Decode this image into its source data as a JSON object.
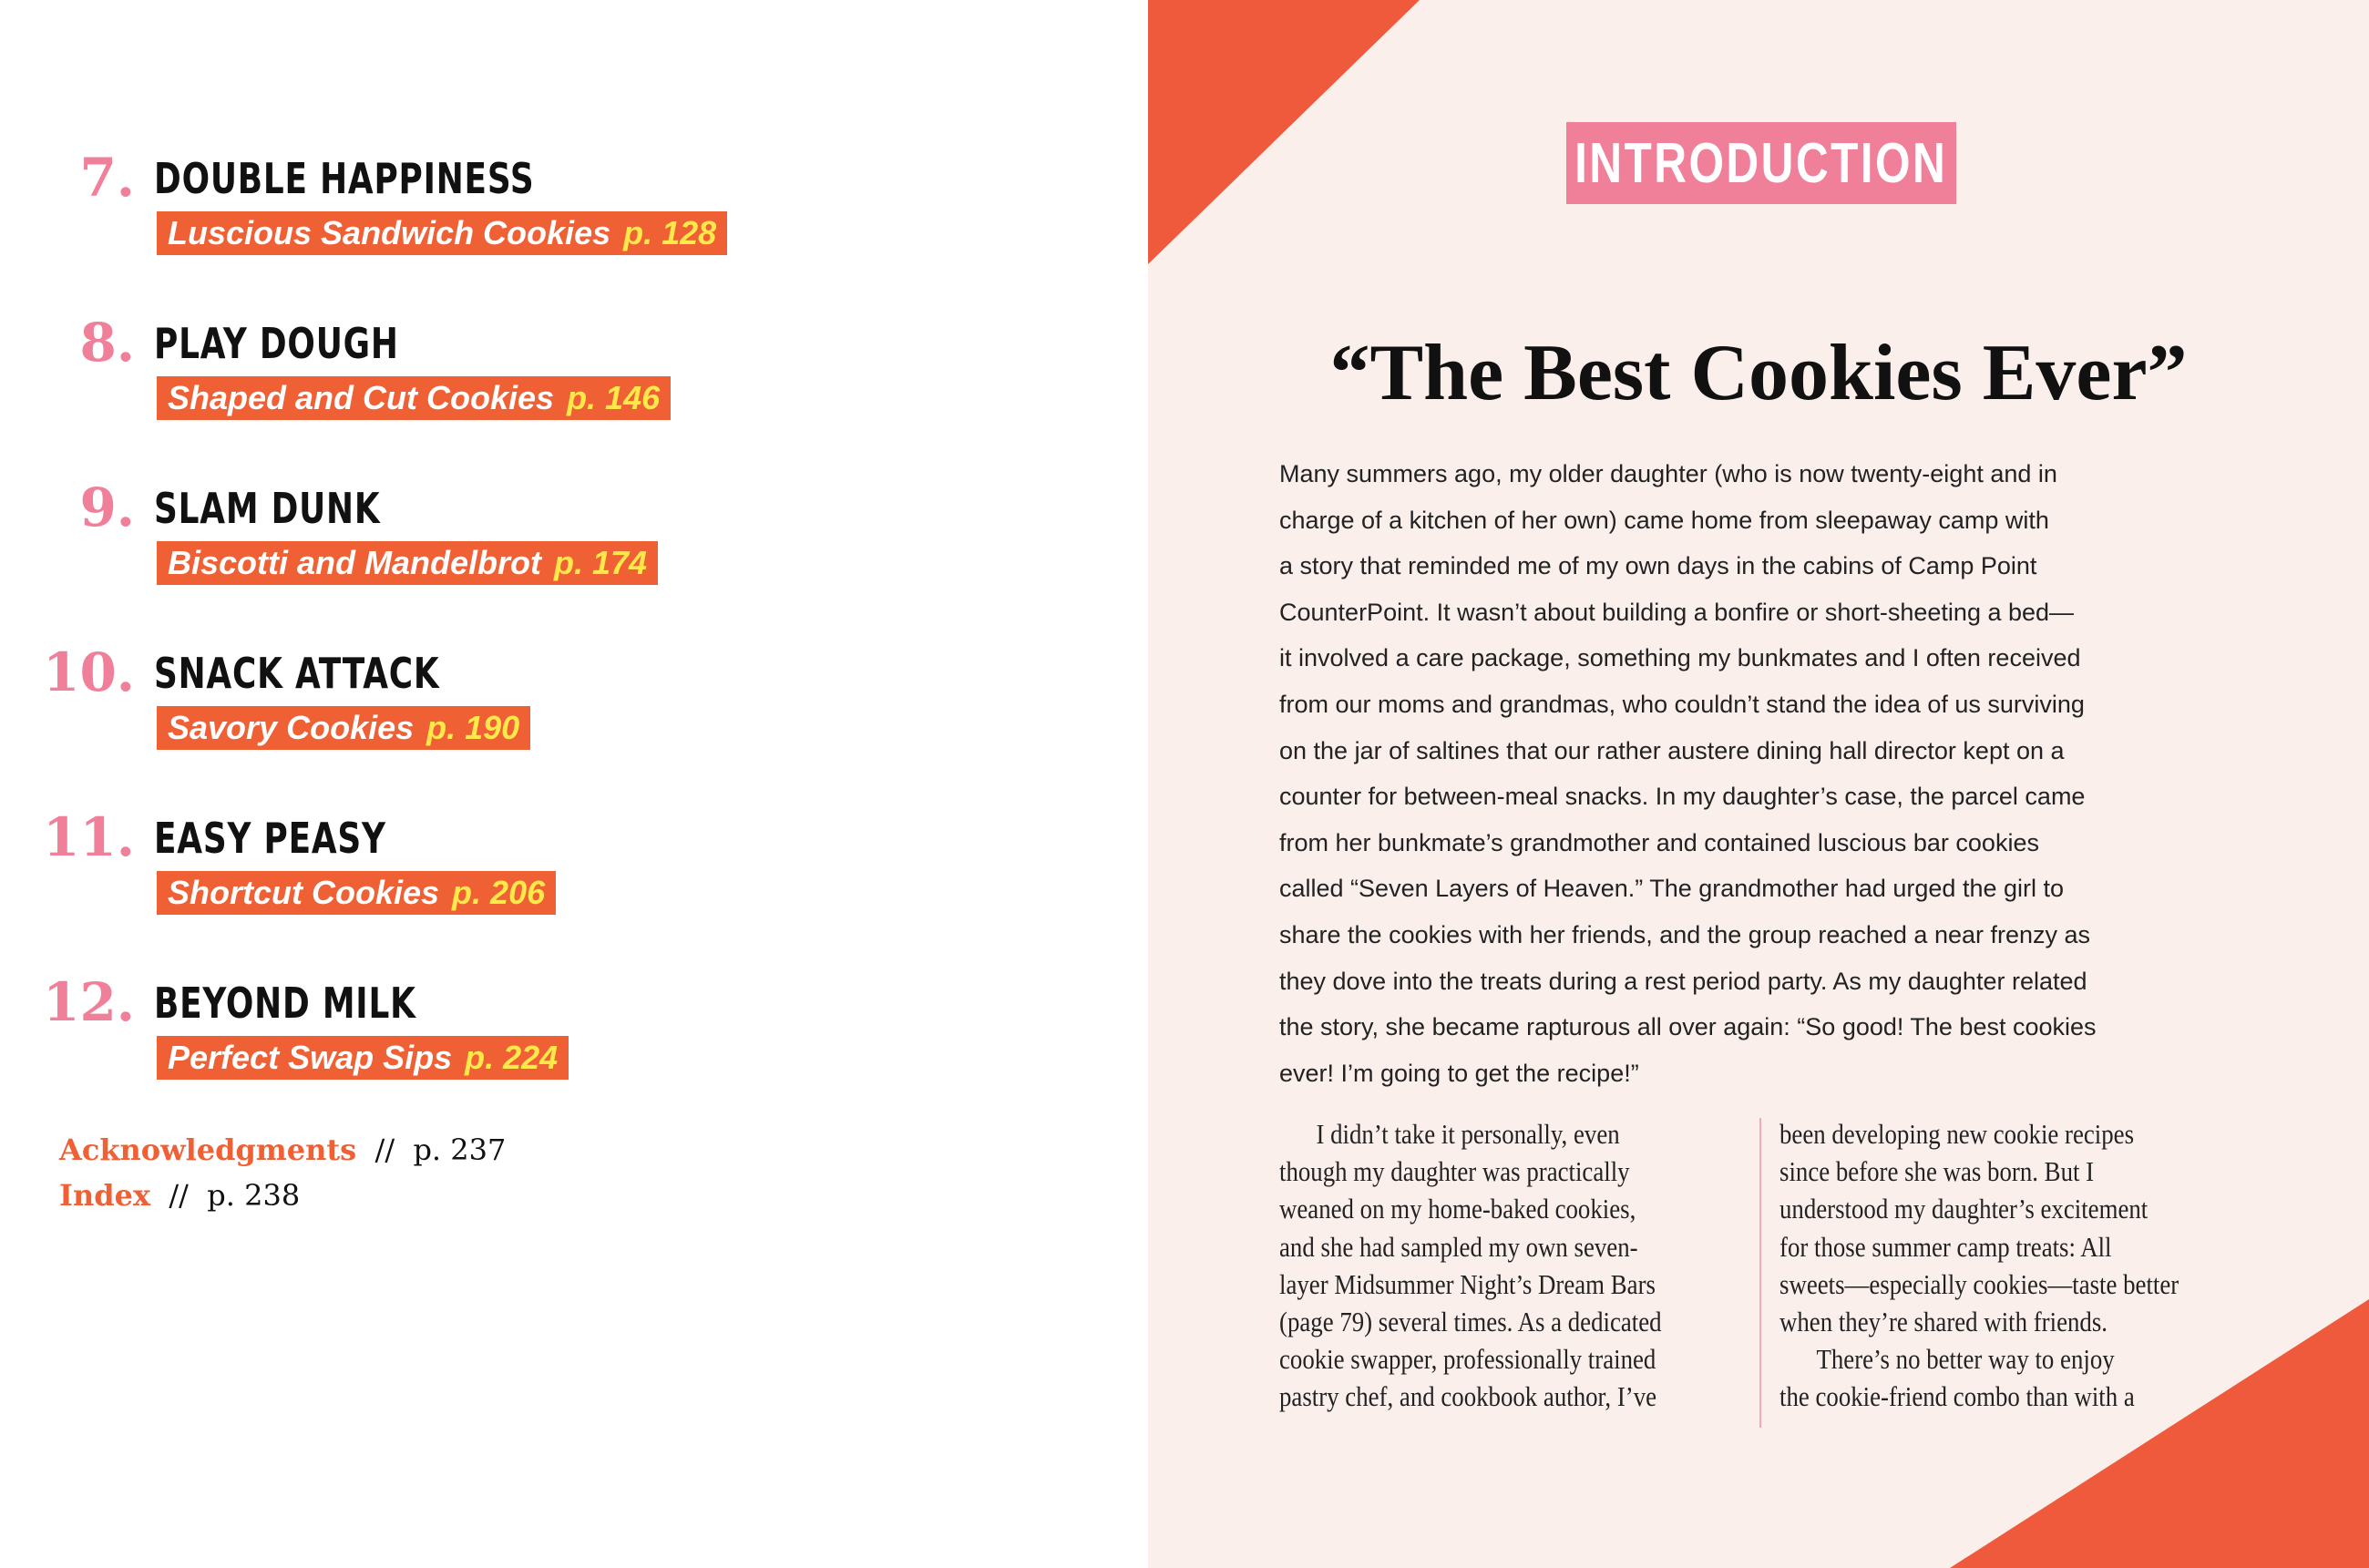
{
  "colors": {
    "accent_orange": "#ef6035",
    "pink": "#f07f9a",
    "yellow": "#ffe94a",
    "page_bg": "#fbefec"
  },
  "toc": [
    {
      "number": "7.",
      "title": "DOUBLE HAPPINESS",
      "subtitle": "Luscious Sandwich Cookies",
      "page": "p. 128"
    },
    {
      "number": "8.",
      "title": "PLAY DOUGH",
      "subtitle": "Shaped and Cut Cookies",
      "page": "p. 146"
    },
    {
      "number": "9.",
      "title": "SLAM DUNK",
      "subtitle": "Biscotti and Mandelbrot",
      "page": "p. 174"
    },
    {
      "number": "10.",
      "title": "SNACK ATTACK",
      "subtitle": "Savory Cookies",
      "page": "p. 190"
    },
    {
      "number": "11.",
      "title": "EASY PEASY",
      "subtitle": "Shortcut Cookies",
      "page": "p. 206"
    },
    {
      "number": "12.",
      "title": "BEYOND MILK",
      "subtitle": "Perfect Swap Sips",
      "page": "p. 224"
    }
  ],
  "back_matter": [
    {
      "label": "Acknowledgments",
      "sep": "//",
      "page": "p. 237"
    },
    {
      "label": "Index",
      "sep": "//",
      "page": "p. 238"
    }
  ],
  "intro": {
    "label": "INTRODUCTION",
    "title": "“The Best Cookies Ever”",
    "paragraph_lines": [
      "Many summers ago, my older daughter (who is now twenty-eight and in",
      "charge of a kitchen of her own) came home from sleepaway camp with",
      "a story that reminded me of my own days in the cabins of Camp Point",
      "CounterPoint. It wasn’t about building a bonfire or short-sheeting a bed—",
      "it involved a care package, something my bunkmates and I often received",
      "from our moms and grandmas, who couldn’t stand the idea of us surviving",
      "on the jar of saltines that our rather austere dining hall director kept on a",
      "counter for between-meal snacks. In my daughter’s case, the parcel came",
      "from her bunkmate’s grandmother and contained luscious bar cookies",
      "called “Seven Layers of Heaven.” The grandmother had urged the girl to",
      "share the cookies with her friends, and the group reached a near frenzy as",
      "they dove into the treats during a rest period party. As my daughter related",
      "the story, she became rapturous all over again: “So good! The best cookies",
      "ever! I’m going to get the recipe!”"
    ],
    "col_left": [
      "I didn’t take it personally, even",
      "though my daughter was practically",
      "weaned on my home-baked cookies,",
      "and she had sampled my own seven-",
      "layer Midsummer Night’s Dream Bars",
      "(page 79) several times. As a dedicated",
      "cookie swapper, professionally trained",
      "pastry chef, and cookbook author, I’ve"
    ],
    "col_right": [
      "been developing new cookie recipes",
      "since before she was born. But I",
      "understood my daughter’s excitement",
      "for those summer camp treats: All",
      "sweets—especially cookies—taste better",
      "when they’re shared with friends.",
      "There’s no better way to enjoy",
      "the cookie-friend combo than with a"
    ]
  }
}
